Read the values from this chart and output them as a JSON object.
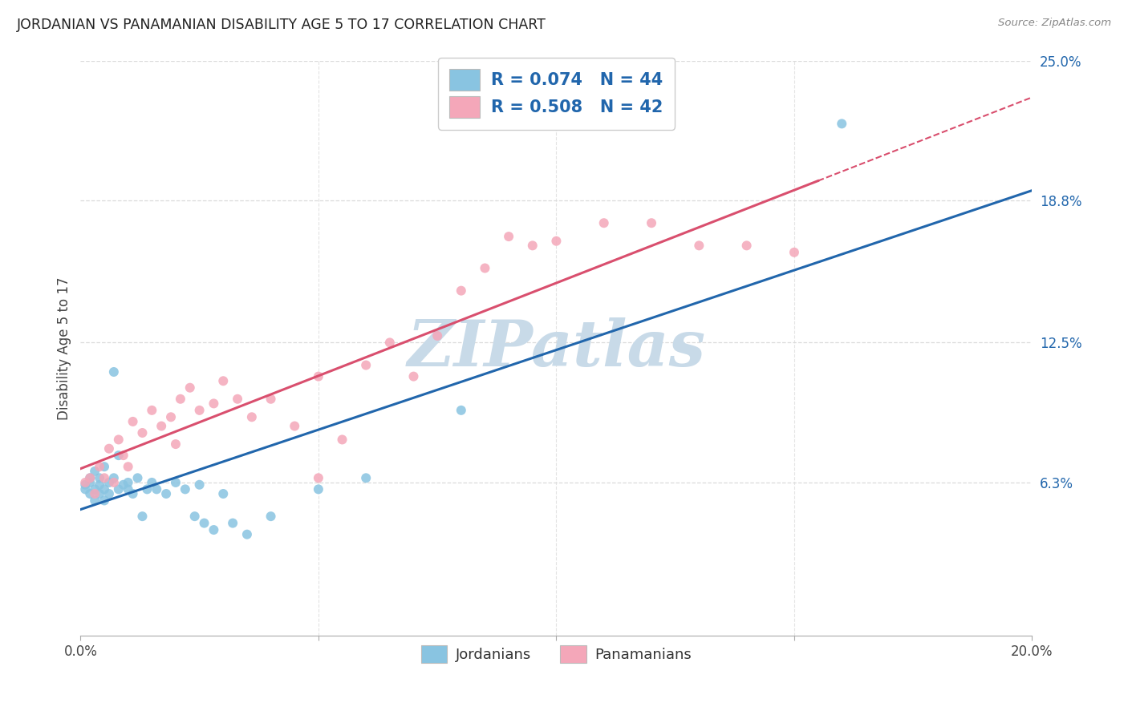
{
  "title": "JORDANIAN VS PANAMANIAN DISABILITY AGE 5 TO 17 CORRELATION CHART",
  "source": "Source: ZipAtlas.com",
  "ylabel": "Disability Age 5 to 17",
  "x_min": 0.0,
  "x_max": 0.2,
  "y_min": 0.0,
  "y_max": 0.25,
  "blue_color": "#89c4e1",
  "pink_color": "#f4a7b9",
  "blue_line_color": "#2166ac",
  "pink_line_color": "#d94f6e",
  "dot_alpha": 0.85,
  "dot_size": 75,
  "jordanians_x": [
    0.001,
    0.001,
    0.002,
    0.002,
    0.002,
    0.003,
    0.003,
    0.003,
    0.004,
    0.004,
    0.004,
    0.005,
    0.005,
    0.005,
    0.006,
    0.006,
    0.007,
    0.007,
    0.008,
    0.008,
    0.009,
    0.01,
    0.01,
    0.011,
    0.012,
    0.013,
    0.014,
    0.015,
    0.016,
    0.018,
    0.02,
    0.022,
    0.024,
    0.026,
    0.028,
    0.03,
    0.035,
    0.04,
    0.05,
    0.06,
    0.08,
    0.16,
    0.025,
    0.032
  ],
  "jordanians_y": [
    0.062,
    0.06,
    0.063,
    0.058,
    0.065,
    0.06,
    0.055,
    0.068,
    0.062,
    0.058,
    0.065,
    0.06,
    0.055,
    0.07,
    0.063,
    0.058,
    0.112,
    0.065,
    0.06,
    0.075,
    0.062,
    0.06,
    0.063,
    0.058,
    0.065,
    0.048,
    0.06,
    0.063,
    0.06,
    0.058,
    0.063,
    0.06,
    0.048,
    0.045,
    0.042,
    0.058,
    0.04,
    0.048,
    0.06,
    0.065,
    0.095,
    0.222,
    0.062,
    0.045
  ],
  "panamanians_x": [
    0.001,
    0.002,
    0.003,
    0.004,
    0.005,
    0.006,
    0.007,
    0.008,
    0.009,
    0.01,
    0.011,
    0.013,
    0.015,
    0.017,
    0.019,
    0.021,
    0.023,
    0.025,
    0.028,
    0.03,
    0.033,
    0.036,
    0.04,
    0.045,
    0.05,
    0.055,
    0.06,
    0.065,
    0.07,
    0.08,
    0.085,
    0.09,
    0.095,
    0.1,
    0.11,
    0.12,
    0.13,
    0.14,
    0.15,
    0.05,
    0.075,
    0.02
  ],
  "panamanians_y": [
    0.063,
    0.065,
    0.058,
    0.07,
    0.065,
    0.078,
    0.063,
    0.082,
    0.075,
    0.07,
    0.09,
    0.085,
    0.095,
    0.088,
    0.092,
    0.1,
    0.105,
    0.095,
    0.098,
    0.108,
    0.1,
    0.092,
    0.1,
    0.088,
    0.11,
    0.082,
    0.115,
    0.125,
    0.11,
    0.148,
    0.158,
    0.172,
    0.168,
    0.17,
    0.178,
    0.178,
    0.168,
    0.168,
    0.165,
    0.065,
    0.128,
    0.08
  ],
  "watermark": "ZIPatlas",
  "watermark_color": "#c8dae8",
  "background_color": "#ffffff",
  "grid_color": "#d8d8d8",
  "right_y_ticks": [
    0.063,
    0.125,
    0.188,
    0.25
  ],
  "right_y_tick_labels": [
    "6.3%",
    "12.5%",
    "18.8%",
    "25.0%"
  ]
}
